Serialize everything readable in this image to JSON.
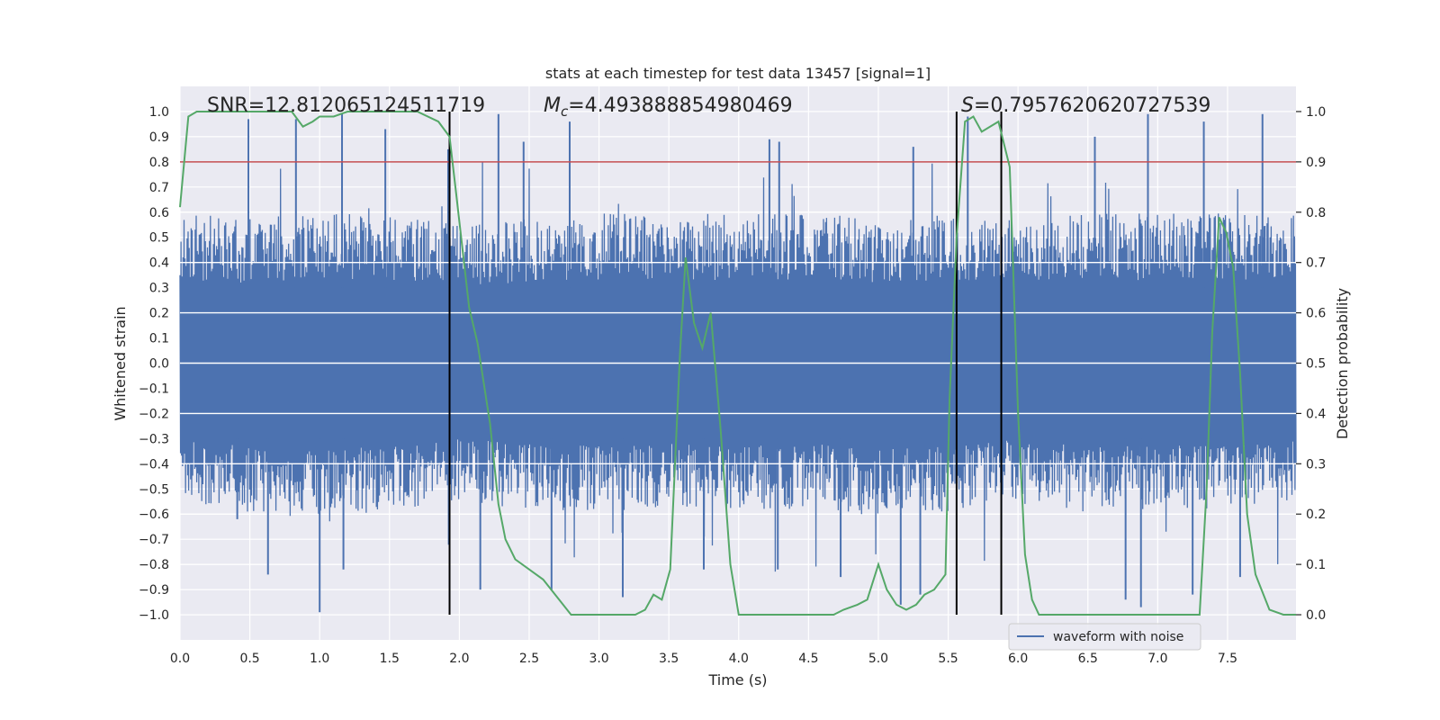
{
  "chart_data": {
    "type": "line",
    "title": "stats at each timestep for test data 13457 [signal=1]",
    "xlabel": "Time (s)",
    "ylabel_left": "Whitened strain",
    "ylabel_right": "Detection probability",
    "xlim": [
      0.0,
      7.99
    ],
    "ylim_left": [
      -1.1,
      1.1
    ],
    "ylim_right": [
      -0.05,
      1.05
    ],
    "x_ticks": [
      0.0,
      0.5,
      1.0,
      1.5,
      2.0,
      2.5,
      3.0,
      3.5,
      4.0,
      4.5,
      5.0,
      5.5,
      6.0,
      6.5,
      7.0,
      7.5
    ],
    "x_tick_labels": [
      "0.0",
      "0.5",
      "1.0",
      "1.5",
      "2.0",
      "2.5",
      "3.0",
      "3.5",
      "4.0",
      "4.5",
      "5.0",
      "5.5",
      "6.0",
      "6.5",
      "7.0",
      "7.5"
    ],
    "y_left_ticks": [
      1.0,
      0.9,
      0.8,
      0.7,
      0.6,
      0.5,
      0.4,
      0.3,
      0.2,
      0.1,
      0.0,
      -0.1,
      -0.2,
      -0.3,
      -0.4,
      -0.5,
      -0.6,
      -0.7,
      -0.8,
      -0.9,
      -1.0
    ],
    "y_left_tick_labels": [
      "1.0",
      "0.9",
      "0.8",
      "0.7",
      "0.6",
      "0.5",
      "0.4",
      "0.3",
      "0.2",
      "0.1",
      "0.0",
      "−0.1",
      "−0.2",
      "−0.3",
      "−0.4",
      "−0.5",
      "−0.6",
      "−0.7",
      "−0.8",
      "−0.9",
      "−1.0"
    ],
    "y_right_ticks": [
      1.0,
      0.9,
      0.8,
      0.7,
      0.6,
      0.5,
      0.4,
      0.3,
      0.2,
      0.1,
      0.0
    ],
    "y_right_tick_labels": [
      "1.0",
      "0.9",
      "0.8",
      "0.7",
      "0.6",
      "0.5",
      "0.4",
      "0.3",
      "0.2",
      "0.1",
      "0.0"
    ],
    "grid": true,
    "legend": {
      "placement": "lower-right",
      "entries": [
        "waveform with noise"
      ]
    },
    "annotations": {
      "snr": {
        "label": "SNR",
        "value": "12.812065124511719"
      },
      "mc": {
        "label_main": "M",
        "label_sub": "c",
        "value": "4.493888854980469"
      },
      "s": {
        "label": "S",
        "value": "0.7957620620727539"
      }
    },
    "threshold_line": {
      "y_left": 0.8,
      "color": "#c44e52"
    },
    "vertical_lines": [
      1.93,
      5.56,
      5.88
    ],
    "series": [
      {
        "name": "waveform with noise",
        "axis": "left",
        "color": "#4c72b0",
        "envelope": [
          [
            0.0,
            -0.56,
            0.6
          ],
          [
            0.5,
            -0.6,
            0.58
          ],
          [
            1.0,
            -0.62,
            0.6
          ],
          [
            1.5,
            -0.6,
            0.6
          ],
          [
            2.0,
            -0.55,
            0.55
          ],
          [
            2.5,
            -0.58,
            0.58
          ],
          [
            3.0,
            -0.6,
            0.6
          ],
          [
            3.5,
            -0.58,
            0.6
          ],
          [
            4.0,
            -0.6,
            0.6
          ],
          [
            4.5,
            -0.58,
            0.6
          ],
          [
            5.0,
            -0.62,
            0.58
          ],
          [
            5.5,
            -0.6,
            0.6
          ],
          [
            6.0,
            -0.55,
            0.58
          ],
          [
            6.5,
            -0.6,
            0.6
          ],
          [
            7.0,
            -0.58,
            0.6
          ],
          [
            7.5,
            -0.6,
            0.6
          ],
          [
            7.99,
            -0.55,
            0.6
          ]
        ],
        "peaks": [
          [
            0.49,
            0.97
          ],
          [
            0.83,
            0.97
          ],
          [
            1.16,
            0.99
          ],
          [
            1.47,
            0.93
          ],
          [
            2.28,
            0.99
          ],
          [
            2.79,
            0.96
          ],
          [
            2.46,
            0.88
          ],
          [
            4.22,
            0.89
          ],
          [
            4.29,
            0.88
          ],
          [
            5.25,
            0.86
          ],
          [
            6.93,
            0.99
          ],
          [
            7.33,
            0.96
          ],
          [
            7.75,
            0.99
          ],
          [
            6.55,
            0.9
          ],
          [
            1.92,
            0.85
          ],
          [
            5.64,
            0.98
          ]
        ],
        "troughs": [
          [
            1.0,
            -0.99
          ],
          [
            0.63,
            -0.84
          ],
          [
            1.17,
            -0.82
          ],
          [
            2.66,
            -0.9
          ],
          [
            3.17,
            -0.93
          ],
          [
            4.28,
            -0.82
          ],
          [
            5.16,
            -0.96
          ],
          [
            5.3,
            -0.92
          ],
          [
            6.77,
            -0.94
          ],
          [
            6.88,
            -0.97
          ],
          [
            7.25,
            -0.92
          ],
          [
            3.75,
            -0.82
          ],
          [
            2.15,
            -0.9
          ],
          [
            4.73,
            -0.85
          ],
          [
            0.41,
            -0.62
          ],
          [
            7.59,
            -0.85
          ]
        ]
      },
      {
        "name": "Detection probability",
        "axis": "right",
        "color": "#55a868",
        "x": [
          0.0,
          0.06,
          0.12,
          0.3,
          0.5,
          0.8,
          0.88,
          0.95,
          1.0,
          1.1,
          1.2,
          1.5,
          1.7,
          1.85,
          1.93,
          1.98,
          2.07,
          2.13,
          2.22,
          2.28,
          2.33,
          2.4,
          2.5,
          2.6,
          2.8,
          3.0,
          3.26,
          3.33,
          3.39,
          3.45,
          3.51,
          3.58,
          3.62,
          3.68,
          3.74,
          3.8,
          3.87,
          3.94,
          4.0,
          4.2,
          4.6,
          4.68,
          4.75,
          4.85,
          4.92,
          5.0,
          5.06,
          5.13,
          5.2,
          5.27,
          5.33,
          5.4,
          5.48,
          5.51,
          5.56,
          5.62,
          5.68,
          5.74,
          5.86,
          5.94,
          6.0,
          6.05,
          6.1,
          6.15,
          6.25,
          6.4,
          6.6,
          6.8,
          7.0,
          7.15,
          7.3,
          7.35,
          7.39,
          7.44,
          7.49,
          7.54,
          7.59,
          7.64,
          7.7,
          7.8,
          7.9,
          7.99
        ],
        "y": [
          0.81,
          0.99,
          1.0,
          1.0,
          1.0,
          1.0,
          0.97,
          0.98,
          0.99,
          0.99,
          1.0,
          1.0,
          1.0,
          0.98,
          0.95,
          0.83,
          0.61,
          0.54,
          0.38,
          0.22,
          0.15,
          0.11,
          0.09,
          0.07,
          0.0,
          0.0,
          0.0,
          0.01,
          0.04,
          0.03,
          0.09,
          0.52,
          0.71,
          0.58,
          0.53,
          0.6,
          0.37,
          0.1,
          0.0,
          0.0,
          0.0,
          0.0,
          0.01,
          0.02,
          0.03,
          0.1,
          0.05,
          0.02,
          0.01,
          0.02,
          0.04,
          0.05,
          0.08,
          0.43,
          0.75,
          0.98,
          0.99,
          0.96,
          0.98,
          0.89,
          0.4,
          0.12,
          0.03,
          0.0,
          0.0,
          0.0,
          0.0,
          0.0,
          0.0,
          0.0,
          0.0,
          0.25,
          0.56,
          0.79,
          0.76,
          0.69,
          0.48,
          0.2,
          0.08,
          0.01,
          0.0,
          0.0
        ]
      }
    ]
  }
}
